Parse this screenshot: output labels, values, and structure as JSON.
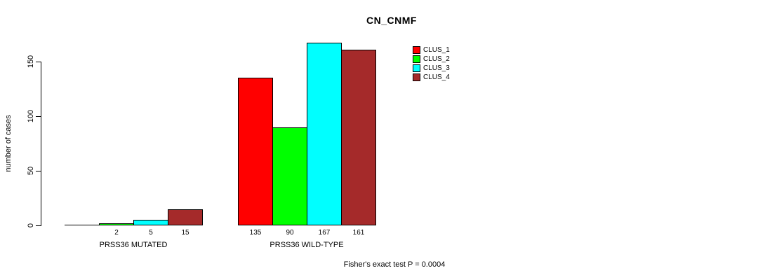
{
  "title": "CN_CNMF",
  "footer": "Fisher's exact test P = 0.0004",
  "chart_data": {
    "type": "bar",
    "title": "CN_CNMF",
    "xlabel": "",
    "ylabel": "number of cases",
    "ylim": [
      0,
      167
    ],
    "yticks": [
      0,
      50,
      100,
      150
    ],
    "grid": false,
    "legend_position": "top-right",
    "series_names": [
      "CLUS_1",
      "CLUS_2",
      "CLUS_3",
      "CLUS_4"
    ],
    "colors": [
      "#FF0000",
      "#00FF00",
      "#00FFFF",
      "#A52A2A"
    ],
    "groups": [
      {
        "label": "PRSS36 MUTATED",
        "values": [
          0,
          2,
          5,
          15
        ],
        "value_labels": [
          "",
          "2",
          "5",
          "15"
        ]
      },
      {
        "label": "PRSS36 WILD-TYPE",
        "values": [
          135,
          90,
          167,
          161
        ],
        "value_labels": [
          "135",
          "90",
          "167",
          "161"
        ]
      }
    ],
    "legend": {
      "items": [
        {
          "label": "CLUS_1",
          "color": "#FF0000"
        },
        {
          "label": "CLUS_2",
          "color": "#00FF00"
        },
        {
          "label": "CLUS_3",
          "color": "#00FFFF"
        },
        {
          "label": "CLUS_4",
          "color": "#A52A2A"
        }
      ]
    },
    "annotation": "Fisher's exact test P = 0.0004"
  }
}
